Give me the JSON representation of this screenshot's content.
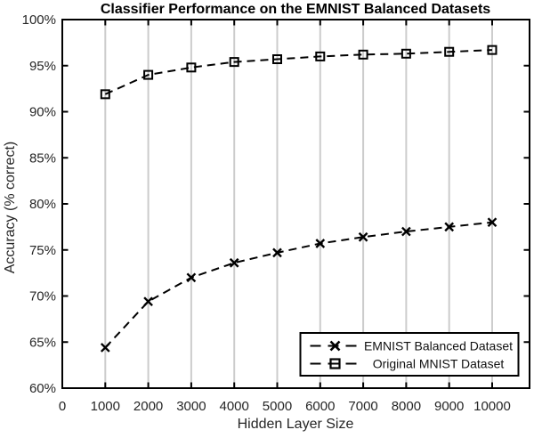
{
  "chart_data": {
    "type": "line",
    "title": "Classifier Performance on the EMNIST Balanced Datasets",
    "xlabel": "Hidden Layer Size",
    "ylabel": "Accuracy (% correct)",
    "x": [
      1000,
      2000,
      3000,
      4000,
      5000,
      6000,
      7000,
      8000,
      9000,
      10000
    ],
    "series": [
      {
        "name": "EMNIST Balanced Dataset",
        "marker": "x",
        "linestyle": "dashed",
        "color": "#000000",
        "values": [
          64.4,
          69.4,
          72.0,
          73.6,
          74.7,
          75.7,
          76.4,
          77.0,
          77.5,
          78.0
        ]
      },
      {
        "name": "Original MNIST Dataset",
        "marker": "square",
        "linestyle": "dashed",
        "color": "#000000",
        "values": [
          91.9,
          94.0,
          94.8,
          95.4,
          95.7,
          96.0,
          96.2,
          96.3,
          96.5,
          96.7
        ]
      }
    ],
    "xlim": [
      0,
      10870
    ],
    "ylim": [
      60,
      100
    ],
    "xticks": [
      0,
      1000,
      2000,
      3000,
      4000,
      5000,
      6000,
      7000,
      8000,
      9000,
      10000
    ],
    "yticks": [
      60,
      65,
      70,
      75,
      80,
      85,
      90,
      95,
      100
    ],
    "ytick_suffix": "%",
    "grid": "vertical-only",
    "grid_color": "#cccccc",
    "axis_color": "#000000",
    "tick_label_color": "#262626",
    "legend_position": "bottom-right",
    "plot_background": "#ffffff"
  }
}
